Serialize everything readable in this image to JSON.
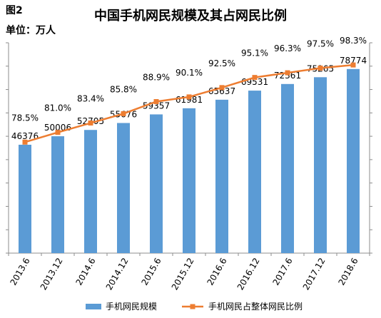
{
  "figure_label": "图2",
  "unit_label": "单位：万人",
  "chart_data": {
    "type": "bar",
    "title": "中国手机网民规模及其占网民比例",
    "categories": [
      "2013.6",
      "2013.12",
      "2014.6",
      "2014.12",
      "2015.6",
      "2015.12",
      "2016.6",
      "2016.12",
      "2017.6",
      "2017.12",
      "2018.6"
    ],
    "series": [
      {
        "name": "手机网民规模",
        "type": "bar",
        "values": [
          46376,
          50006,
          52705,
          55676,
          59357,
          61981,
          65637,
          69531,
          72361,
          75265,
          78774
        ],
        "labels": [
          "46376",
          "50006",
          "52705",
          "55676",
          "59357",
          "61981",
          "65637",
          "69531",
          "72361",
          "75265",
          "78774"
        ],
        "color": "#5b9bd5"
      },
      {
        "name": "手机网民占整体网民比例",
        "type": "line",
        "values": [
          78.5,
          81.0,
          83.4,
          85.8,
          88.9,
          90.1,
          92.5,
          95.1,
          96.3,
          97.5,
          98.3
        ],
        "labels": [
          "78.5%",
          "81.0%",
          "83.4%",
          "85.8%",
          "88.9%",
          "90.1%",
          "92.5%",
          "95.1%",
          "96.3%",
          "97.5%",
          "98.3%"
        ],
        "color": "#ed7d31"
      }
    ],
    "ylim": [
      0,
      90000
    ],
    "y2lim": [
      50,
      104
    ],
    "grid": false,
    "legend": "bottom"
  }
}
